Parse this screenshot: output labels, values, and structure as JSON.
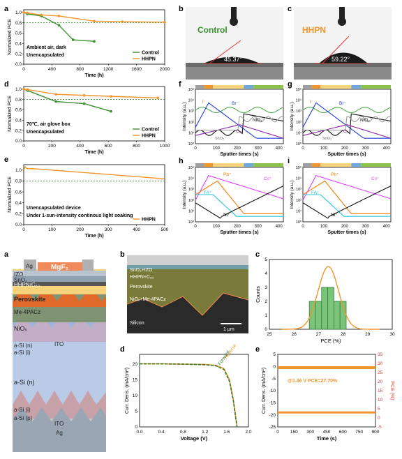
{
  "colors": {
    "control": "#3a8f2e",
    "hhpn": "#f0962c",
    "dash_ref": "#2e7d32",
    "ref_green": "#3d8a3a",
    "axis": "#000000",
    "pce_red": "#e53935"
  },
  "panel_letters": {
    "a": "a",
    "b": "b",
    "c": "c",
    "d": "d",
    "e": "e",
    "f": "f",
    "g": "g",
    "h": "h",
    "i": "i",
    "a2": "a",
    "b2": "b",
    "c2": "c",
    "d2": "d",
    "e2": "e"
  },
  "pce_ylabel": "Normalized PCE",
  "panel_a": {
    "xlabel": "Time (h)",
    "xticks": [
      "0",
      "400",
      "800",
      "1200",
      "1600",
      "2000"
    ],
    "yticks": [
      "0.0",
      "0.2",
      "0.4",
      "0.6",
      "0.8",
      "1.0"
    ],
    "note1": "Ambient air, dark",
    "note2": "Unencapsulated",
    "legend": [
      "Control",
      "HHPN"
    ]
  },
  "panel_d": {
    "xlabel": "Time (h)",
    "xticks": [
      "0",
      "200",
      "400",
      "600",
      "800",
      "1000"
    ],
    "yticks": [
      "0.0",
      "0.2",
      "0.4",
      "0.6",
      "0.8",
      "1.0"
    ],
    "note1": "70℃, air glove box",
    "note2": "Unencapsulated",
    "legend": [
      "Control",
      "HHPN"
    ]
  },
  "panel_e": {
    "xlabel": "Time (h)",
    "xticks": [
      "0",
      "100",
      "200",
      "300",
      "400",
      "500"
    ],
    "yticks": [
      "0.0",
      "0.2",
      "0.4",
      "0.6",
      "0.8",
      "1.0"
    ],
    "note1": "Unencapsulated device",
    "note2": "Under 1-sun-intensity continous light soaking",
    "legend": [
      "HHPN"
    ]
  },
  "contact_angle": {
    "control_label": "Control",
    "control_angle": "45.37°",
    "hhpn_label": "HHPN",
    "hhpn_angle": "59.22°"
  },
  "tof": {
    "ylabel": "Intensity (a.u.)",
    "xlabel": "Sputter times (s)",
    "xticks": [
      "0",
      "100",
      "200",
      "300",
      "400"
    ],
    "yticks": [
      "10⁰",
      "10¹",
      "10²",
      "10³",
      "10⁴",
      "10⁵"
    ],
    "f_labels": [
      "Br⁻",
      "NiO₂⁻",
      "C₂⁻",
      "I⁻",
      "SnO₂⁻"
    ],
    "g_labels": [
      "Br⁻",
      "NiO₂⁻",
      "C₂⁻",
      "I⁻",
      "SnO₂⁻"
    ],
    "h_labels": [
      "Pb⁺",
      "Cs⁺",
      "FA⁺",
      "Ni⁺"
    ],
    "i_labels": [
      "Pb⁺",
      "Cs⁺",
      "FA⁺",
      "Ni⁺"
    ]
  },
  "stack": {
    "layers": [
      "Ag",
      "MgF₂",
      "IZO",
      "SnO₂",
      "HHPN/C₆₀",
      "Perovskite",
      "Me-4PACz",
      "NiOₓ",
      "a-Si (n)",
      "a-Si (i)",
      "ITO",
      "a-Si (n)",
      "a-Si (i)",
      "a-Si (p)",
      "ITO",
      "Ag"
    ]
  },
  "sem": {
    "labels": [
      "SnO₂+IZO",
      "HHPN+C₆₀",
      "Perovskite",
      "NiOₓ+Me-4PACz",
      "Silicon"
    ],
    "scale": "1 μm"
  },
  "hist": {
    "xlabel": "PCE (%)",
    "ylabel": "Counts",
    "xticks": [
      "25",
      "26",
      "27",
      "28",
      "29",
      "30"
    ],
    "yticks": [
      "0",
      "1",
      "2",
      "3",
      "4",
      "5"
    ]
  },
  "jv": {
    "xlabel": "Voltage (V)",
    "ylabel": "Curr. Dens. (mA/cm²)",
    "xticks": [
      "0.0",
      "0.2",
      "0.4",
      "0.6",
      "0.8",
      "1.0",
      "1.2",
      "1.4",
      "1.6",
      "1.8",
      "2.0"
    ],
    "xticks_shown": [
      "0.0",
      "0.4",
      "0.8",
      "1.2",
      "1.6",
      "2.0"
    ],
    "yticks": [
      "0",
      "5",
      "10",
      "15",
      "20"
    ],
    "reverse": "Reverse",
    "forward": "Forward"
  },
  "mpp": {
    "xlabel": "Time (s)",
    "ylabel_left": "Curr. Dens. (mA/cm²)",
    "ylabel_right": "PCE (%)",
    "xticks": [
      "0",
      "150",
      "300",
      "450",
      "600",
      "750",
      "900"
    ],
    "yticks_left": [
      "-25",
      "-20",
      "-15",
      "-10",
      "-5",
      "0",
      "5"
    ],
    "yticks_right": [
      "-5",
      "0",
      "5",
      "10",
      "15",
      "20",
      "25",
      "30",
      "35"
    ],
    "annotation": "@1.46 V PCE=27.70%"
  },
  "chart_data": [
    {
      "type": "line",
      "id": "a",
      "xlabel": "Time (h)",
      "ylabel": "Normalized PCE",
      "xlim": [
        0,
        2000
      ],
      "ylim": [
        0,
        1.05
      ],
      "series": [
        {
          "name": "Control",
          "x": [
            0,
            50,
            250,
            500,
            700,
            1000
          ],
          "y": [
            1.0,
            0.97,
            0.93,
            0.75,
            0.47,
            0.44
          ]
        },
        {
          "name": "HHPN",
          "x": [
            0,
            50,
            250,
            500,
            1000,
            1400,
            2000
          ],
          "y": [
            1.0,
            0.99,
            0.95,
            0.93,
            0.83,
            0.82,
            0.81
          ]
        }
      ]
    },
    {
      "type": "line",
      "id": "d",
      "xlabel": "Time (h)",
      "ylabel": "Normalized PCE",
      "xlim": [
        0,
        1050
      ],
      "ylim": [
        0,
        1.05
      ],
      "series": [
        {
          "name": "Control",
          "x": [
            0,
            30,
            240,
            450,
            650
          ],
          "y": [
            1.0,
            0.97,
            0.76,
            0.72,
            0.57
          ]
        },
        {
          "name": "HHPN",
          "x": [
            0,
            30,
            240,
            450,
            650,
            1000
          ],
          "y": [
            1.0,
            0.99,
            0.9,
            0.88,
            0.86,
            0.83
          ]
        }
      ]
    },
    {
      "type": "line",
      "id": "e",
      "xlabel": "Time (h)",
      "ylabel": "Normalized PCE",
      "xlim": [
        0,
        500
      ],
      "ylim": [
        0,
        1.1
      ],
      "series": [
        {
          "name": "HHPN",
          "x": [
            0,
            5,
            10,
            50,
            100,
            150,
            200,
            250,
            300,
            350,
            400,
            450,
            500
          ],
          "y": [
            1.0,
            1.06,
            1.03,
            1.02,
            1.0,
            0.98,
            0.96,
            0.94,
            0.92,
            0.9,
            0.88,
            0.86,
            0.84
          ]
        }
      ]
    },
    {
      "type": "bar",
      "id": "c2",
      "xlabel": "PCE (%)",
      "ylabel": "Counts",
      "xlim": [
        25,
        30
      ],
      "ylim": [
        0,
        5
      ],
      "categories": [
        "26.75",
        "27.0",
        "27.25",
        "27.5",
        "27.75",
        "28.0"
      ],
      "values": [
        2,
        2,
        3,
        3,
        2,
        2
      ]
    },
    {
      "type": "line",
      "id": "d2",
      "xlabel": "Voltage (V)",
      "ylabel": "Curr. Dens. (mA/cm²)",
      "xlim": [
        0,
        2.0
      ],
      "ylim": [
        0,
        23
      ],
      "series": [
        {
          "name": "Reverse",
          "x": [
            0,
            0.4,
            0.8,
            1.2,
            1.4,
            1.55,
            1.65,
            1.72,
            1.76,
            1.79
          ],
          "y": [
            20.0,
            20.0,
            19.9,
            19.8,
            19.5,
            18.5,
            15.0,
            9.0,
            4.0,
            0
          ]
        },
        {
          "name": "Forward",
          "x": [
            0,
            0.4,
            0.8,
            1.2,
            1.4,
            1.55,
            1.65,
            1.72,
            1.76,
            1.79
          ],
          "y": [
            20.0,
            20.0,
            19.9,
            19.7,
            19.4,
            18.2,
            14.5,
            8.5,
            3.5,
            0
          ]
        }
      ]
    },
    {
      "type": "line",
      "id": "e2",
      "xlabel": "Time (s)",
      "xlim": [
        0,
        900
      ],
      "series": [
        {
          "name": "PCE",
          "x": [
            0,
            150,
            300,
            450,
            600,
            750,
            900
          ],
          "y": [
            27.7,
            27.7,
            27.7,
            27.7,
            27.7,
            27.7,
            27.7
          ]
        },
        {
          "name": "Current density",
          "x": [
            0,
            150,
            300,
            450,
            600,
            750,
            900
          ],
          "y": [
            -19.0,
            -19.0,
            -19.0,
            -19.0,
            -19.0,
            -19.0,
            -19.0
          ]
        }
      ]
    }
  ]
}
